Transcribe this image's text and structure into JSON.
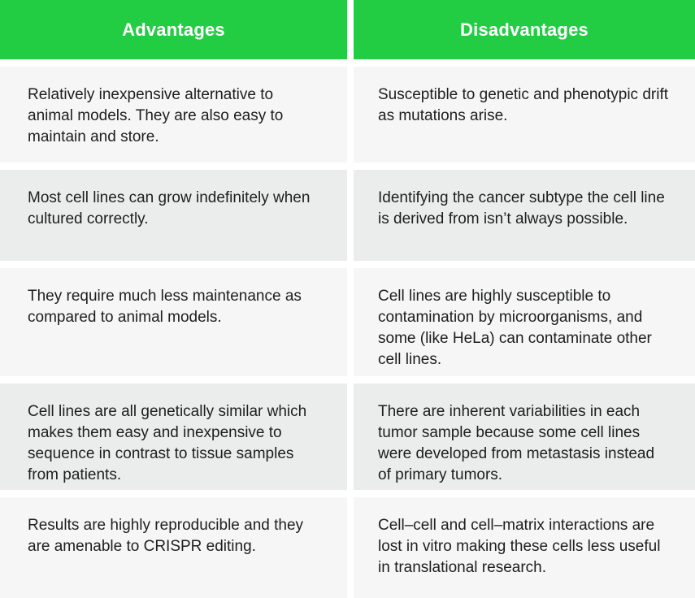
{
  "table": {
    "columns": [
      {
        "header": "Advantages",
        "cells": [
          "Relatively inexpensive alternative to animal models. They are also easy to maintain and store.",
          "Most cell lines can grow indefinitely when cultured correctly.",
          "They require much less maintenance as compared to animal models.",
          "Cell lines are all genetically similar which makes them easy and inexpensive to sequence in contrast to tissue samples from patients.",
          "Results are highly reproducible and they are amenable to CRISPR editing."
        ]
      },
      {
        "header": "Disadvantages",
        "cells": [
          "Susceptible to genetic and phenotypic drift as mutations arise.",
          "Identifying the cancer subtype the cell line is derived from isn’t always possible.",
          "Cell lines are highly susceptible to contamination by microorganisms, and some (like HeLa) can contaminate other cell lines.",
          "There are inherent variabilities in each tumor sample because some cell lines were developed from metastasis instead of primary tumors.",
          "Cell–cell and cell–matrix interactions are lost in vitro making these cells less useful in translational research."
        ]
      }
    ]
  },
  "colors": {
    "header_bg": "#22cd44",
    "header_text": "#ffffff",
    "row_light_bg": "#f5f6f5",
    "row_dark_bg": "#eaedeb",
    "gap": "#ffffff",
    "body_text": "#1d1f1e"
  }
}
